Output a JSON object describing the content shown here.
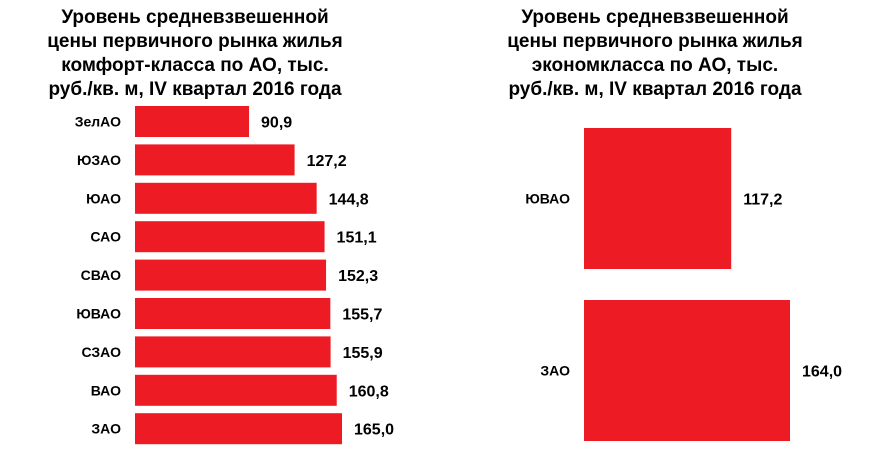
{
  "chart_data": [
    {
      "type": "bar",
      "orientation": "horizontal",
      "title": "Уровень средневзвешенной\nцены первичного рынка жилья\nкомфорт-класса  по АО, тыс.\nруб./кв. м, IV квартал 2016 года",
      "categories": [
        "ЗелАО",
        "ЮЗАО",
        "ЮАО",
        "САО",
        "СВАО",
        "ЮВАО",
        "СЗАО",
        "ВАО",
        "ЗАО"
      ],
      "values": [
        90.9,
        127.2,
        144.8,
        151.1,
        152.3,
        155.7,
        155.9,
        160.8,
        165.0
      ],
      "value_labels": [
        "90,9",
        "127,2",
        "144,8",
        "151,1",
        "152,3",
        "155,7",
        "155,9",
        "160,8",
        "165,0"
      ],
      "bar_color": "#ed1c24",
      "xlim": [
        0,
        165.0
      ],
      "grid": false,
      "legend": "none"
    },
    {
      "type": "bar",
      "orientation": "horizontal",
      "title": "Уровень средневзвешенной\nцены первичного рынка жилья\nэкономкласса  по АО, тыс.\nруб./кв. м, IV квартал 2016 года",
      "categories": [
        "ЮВАО",
        "ЗАО"
      ],
      "values": [
        117.2,
        164.0
      ],
      "value_labels": [
        "117,2",
        "164,0"
      ],
      "bar_color": "#ed1c24",
      "xlim": [
        0,
        164.0
      ],
      "grid": false,
      "legend": "none"
    }
  ]
}
